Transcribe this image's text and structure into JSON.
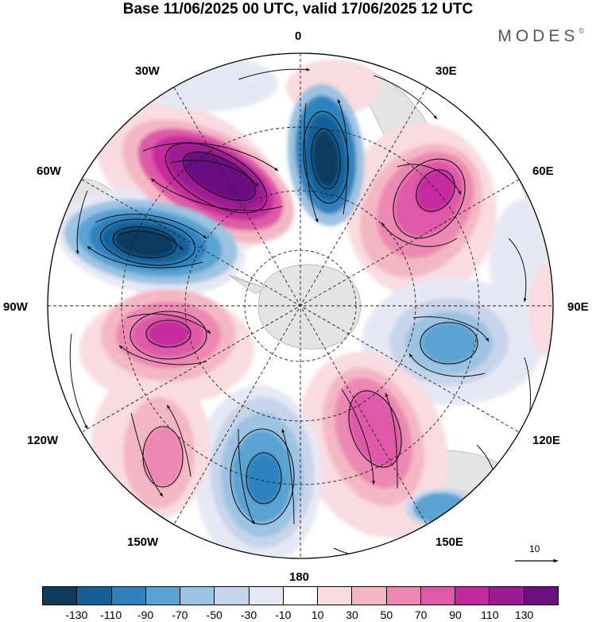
{
  "header": {
    "title": "Base 11/06/2025 00 UTC, valid 17/06/2025 12 UTC",
    "brand": "MODES",
    "brand_mark": "©"
  },
  "map": {
    "projection": "south-polar-stereographic",
    "longitude_labels": {
      "top": "0",
      "top_right": "30E",
      "right_upper": "60E",
      "right": "90E",
      "right_lower": "120E",
      "bottom_right": "150E",
      "bottom": "180",
      "bottom_left": "150W",
      "left_lower": "120W",
      "left": "90W",
      "left_upper": "60W",
      "top_left": "30W"
    },
    "reference_vector": {
      "label": "10"
    }
  },
  "colorbar": {
    "colors": [
      "#0f3b5e",
      "#16609a",
      "#2f82be",
      "#5aa3d3",
      "#9cc3e2",
      "#c8d4ea",
      "#e6e8f4",
      "#ffffff",
      "#f9dce0",
      "#f4b7c4",
      "#ec88b1",
      "#de5aa8",
      "#c5299e",
      "#9c1a92",
      "#6a0f80"
    ],
    "tick_labels": [
      "-130",
      "-110",
      "-90",
      "-70",
      "-50",
      "-30",
      "-10",
      "10",
      "30",
      "50",
      "70",
      "90",
      "110",
      "130"
    ]
  },
  "colors": {
    "land": "#e4e4e4",
    "grid": "#222222"
  }
}
